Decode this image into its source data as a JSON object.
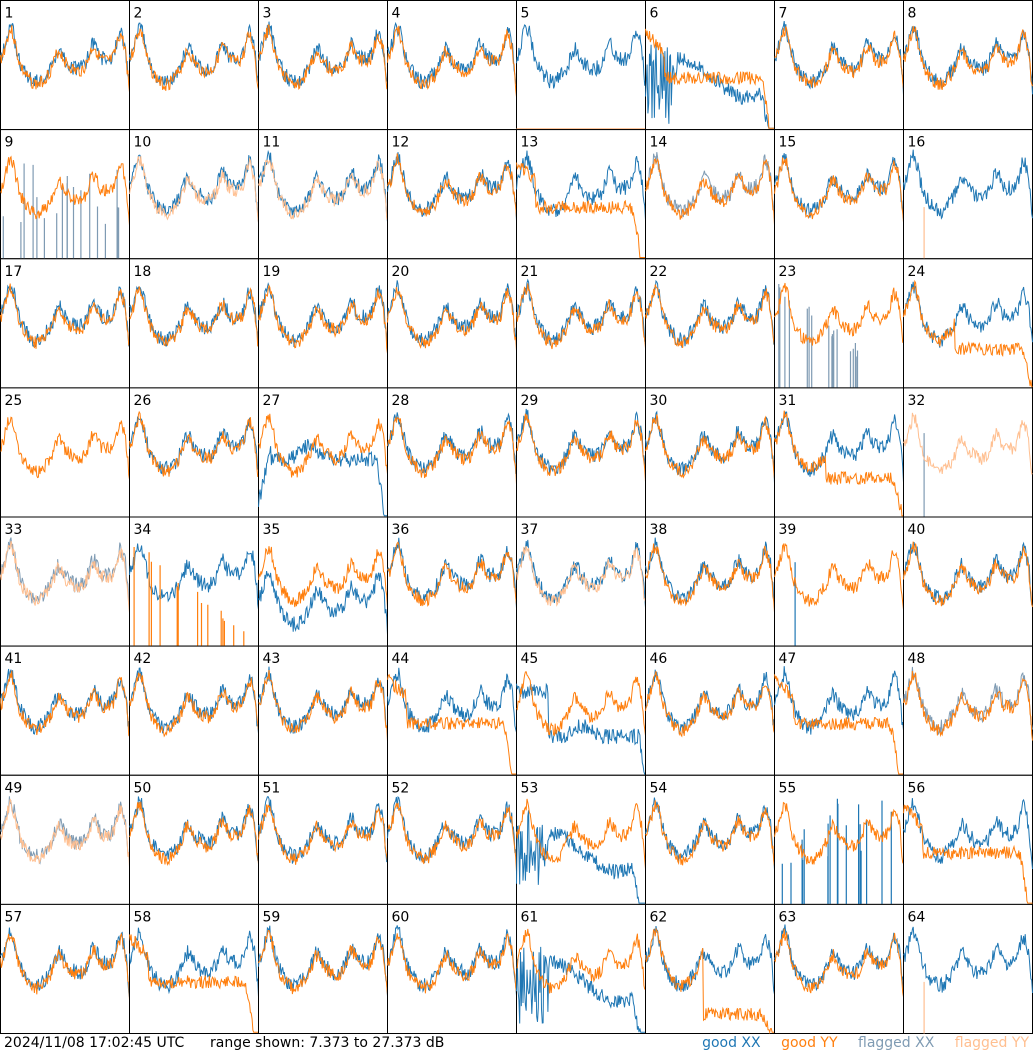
{
  "chart_data": {
    "type": "line",
    "description_units": "dB",
    "panel_labels": [
      "1",
      "2",
      "3",
      "4",
      "5",
      "6",
      "7",
      "8",
      "9",
      "10",
      "11",
      "12",
      "13",
      "14",
      "15",
      "16",
      "17",
      "18",
      "19",
      "20",
      "21",
      "22",
      "23",
      "24",
      "25",
      "26",
      "27",
      "28",
      "29",
      "30",
      "31",
      "32",
      "33",
      "34",
      "35",
      "36",
      "37",
      "38",
      "39",
      "40",
      "41",
      "42",
      "43",
      "44",
      "45",
      "46",
      "47",
      "48",
      "49",
      "50",
      "51",
      "52",
      "53",
      "54",
      "55",
      "56",
      "57",
      "58",
      "59",
      "60",
      "61",
      "62",
      "63",
      "64"
    ],
    "ylim": [
      7.373,
      27.373
    ],
    "grid": false,
    "legend_placement": "bottom-right",
    "series": [
      {
        "name": "good XX",
        "color": "#1f77b4"
      },
      {
        "name": "good YY",
        "color": "#ff7f0e"
      },
      {
        "name": "flagged XX",
        "color": "#7f9bb3"
      },
      {
        "name": "flagged YY",
        "color": "#ffbf90"
      }
    ],
    "panel_styles": {
      "5": {
        "yy": "flatline"
      },
      "6": {
        "yy": "droop",
        "xx": "wave"
      },
      "9": {
        "xx": "flag_spikes"
      },
      "10": {
        "yy_flagged": true
      },
      "11": {
        "yy_flagged": true
      },
      "13": {
        "yy": "droop"
      },
      "14": {
        "xx_flagged": true
      },
      "16": {
        "yy": "single_spike"
      },
      "23": {
        "xx": "flag_spikes_decay"
      },
      "24": {
        "yy": "droop_low"
      },
      "25": {
        "xx": "none"
      },
      "27": {
        "xx": "rise_drop"
      },
      "31": {
        "yy": "droop_low"
      },
      "32": {
        "yy_flagged": true,
        "xx": "single_spike_flagged"
      },
      "33": {
        "yy_flagged": true,
        "xx_flagged": true
      },
      "34": {
        "yy": "spikes"
      },
      "35": {
        "xx": "low"
      },
      "37": {
        "yy_flagged": true
      },
      "39": {
        "xx": "single_spike"
      },
      "44": {
        "yy": "droop"
      },
      "45": {
        "xx": "droop_dip"
      },
      "47": {
        "yy": "droop"
      },
      "48": {
        "xx_flagged": true
      },
      "49": {
        "yy_flagged": true,
        "xx_flagged": true
      },
      "53": {
        "xx": "wave"
      },
      "55": {
        "xx": "flag_spikes"
      },
      "56": {
        "yy": "droop"
      },
      "58": {
        "yy": "droop"
      },
      "61": {
        "xx": "wave"
      },
      "62": {
        "yy": "low_droop"
      },
      "64": {
        "yy": "single_spike"
      }
    }
  },
  "footer": {
    "timestamp": "2024/11/08 17:02:45 UTC",
    "range": "range shown: 7.373 to 27.373 dB"
  },
  "legend": {
    "good_xx": "good XX",
    "good_yy": "good YY",
    "flagged_xx": "flagged XX",
    "flagged_yy": "flagged YY"
  }
}
